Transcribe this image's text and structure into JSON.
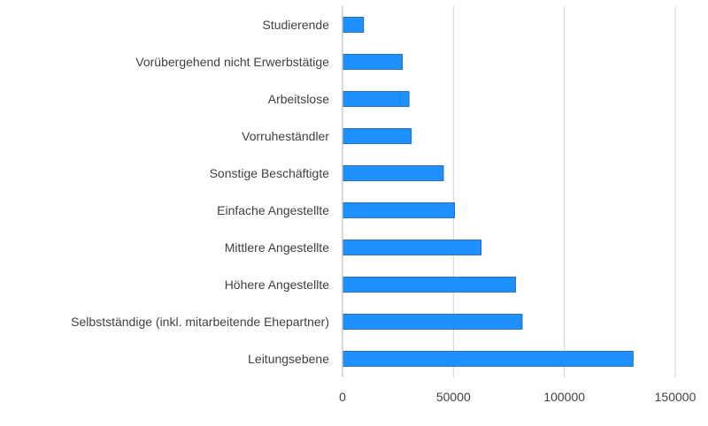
{
  "chart_data": {
    "type": "bar",
    "orientation": "horizontal",
    "categories": [
      "Leitungsebene",
      "Selbstständige (inkl. mitarbeitende Ehepartner)",
      "Höhere Angestellte",
      "Mittlere Angestellte",
      "Einfache Angestellte",
      "Sonstige Beschäftigte",
      "Vorruheständler",
      "Arbeitslose",
      "Vorübergehend nicht Erwerbstätige",
      "Studierende"
    ],
    "values": [
      131000,
      81000,
      78000,
      62500,
      50500,
      45500,
      31000,
      30000,
      27000,
      9500
    ],
    "xlim": [
      0,
      150000
    ],
    "xticks": [
      0,
      50000,
      100000,
      150000
    ],
    "xtick_labels": [
      "0",
      "50000",
      "100000",
      "150000"
    ],
    "grid": true,
    "title": "",
    "xlabel": "",
    "ylabel": "",
    "bar_color": "#1e90ff",
    "bar_edge_color": "#1a5ea8",
    "grid_color": "#d9d9d9",
    "axis_color": "#bfbfbf",
    "text_color": "#404040"
  }
}
